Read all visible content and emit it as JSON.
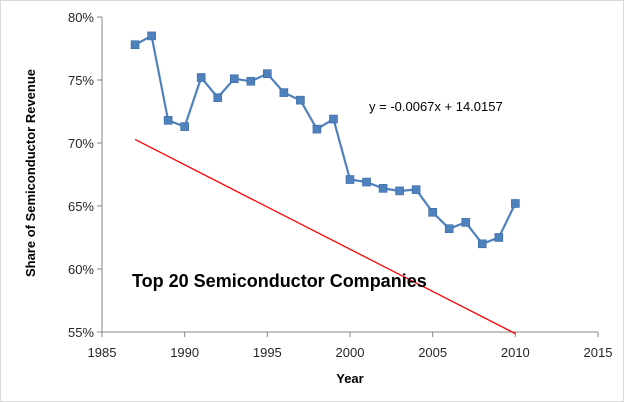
{
  "chart_data": {
    "type": "scatter",
    "title": "",
    "xlabel": "Year",
    "ylabel": "Share of Semiconductor Revenue",
    "xlim": [
      1985,
      2015
    ],
    "ylim": [
      0.55,
      0.8
    ],
    "x_ticks": [
      1985,
      1990,
      1995,
      2000,
      2005,
      2010,
      2015
    ],
    "y_ticks": [
      0.55,
      0.6,
      0.65,
      0.7,
      0.75,
      0.8
    ],
    "x_tick_labels": [
      "1985",
      "1990",
      "1995",
      "2000",
      "2005",
      "2010",
      "2015"
    ],
    "y_tick_labels": [
      "55%",
      "60%",
      "65%",
      "70%",
      "75%",
      "80%"
    ],
    "grid": false,
    "legend": "none",
    "series": [
      {
        "color": "#4f81bd",
        "marker": "square",
        "connected": true,
        "x": [
          1987,
          1988,
          1989,
          1990,
          1991,
          1992,
          1993,
          1994,
          1995,
          1996,
          1997,
          1998,
          1999,
          2000,
          2001,
          2002,
          2003,
          2004,
          2005,
          2006,
          2007,
          2008,
          2009,
          2010
        ],
        "y": [
          0.778,
          0.785,
          0.718,
          0.713,
          0.752,
          0.736,
          0.751,
          0.749,
          0.755,
          0.74,
          0.734,
          0.711,
          0.719,
          0.671,
          0.669,
          0.664,
          0.662,
          0.663,
          0.645,
          0.632,
          0.637,
          0.62,
          0.625,
          0.652
        ]
      }
    ],
    "trendline": {
      "color": "#ff0000",
      "slope": -0.0067,
      "intercept": 14.0157,
      "x_range": [
        1987,
        2010
      ],
      "equation_label": "y = -0.0067x + 14.0157"
    },
    "annotation": "Top 20 Semiconductor Companies"
  }
}
